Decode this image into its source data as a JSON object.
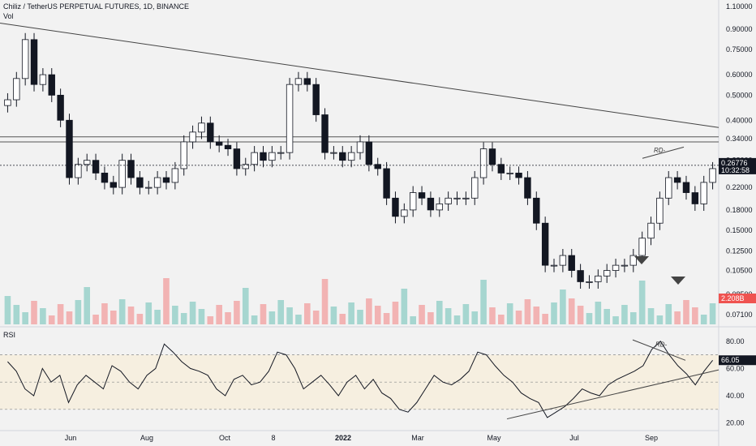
{
  "header": {
    "title": "Chiliz / TetherUS PERPETUAL FUTURES, 1D, BINANCE",
    "volume_label": "Vol",
    "rsi_label": "RSI"
  },
  "colors": {
    "background": "#f2f2f2",
    "up_candle": "#ffffff",
    "down_candle": "#131722",
    "wick": "#131722",
    "volume_up": "#a6d6d0",
    "volume_down": "#f2b3b3",
    "rsi_band": "#f6efe0",
    "rsi_line": "#131722",
    "price_tag": "#131722",
    "volume_tag": "#ef5350"
  },
  "price_axis": {
    "ticks": [
      "1.10000",
      "0.90000",
      "0.75000",
      "0.60000",
      "0.50000",
      "0.40000",
      "0.34000",
      "0.28000",
      "0.22000",
      "0.18000",
      "0.15000",
      "0.12500",
      "0.10500",
      "0.08500",
      "0.07100"
    ],
    "current_price": "0.26776",
    "countdown": "10:32:58",
    "volume_value": "2.208B"
  },
  "rsi_axis": {
    "ticks": [
      "80.00",
      "60.00",
      "40.00",
      "20.00"
    ],
    "current_value": "66.05"
  },
  "time_axis": {
    "ticks": [
      "Jun",
      "Aug",
      "Oct",
      "8",
      "2022",
      "Mar",
      "May",
      "Jul",
      "Sep"
    ]
  },
  "annotations": {
    "price_rd": "RD-",
    "rsi_rd": "RD-"
  },
  "chart_data": [
    {
      "type": "candlestick",
      "title": "Chiliz / TetherUS PERPETUAL FUTURES, 1D, BINANCE",
      "scale": "log",
      "ylim": [
        0.065,
        1.15
      ],
      "x_ticks": [
        "Jun",
        "Aug",
        "Oct",
        "8",
        "2022",
        "Mar",
        "May",
        "Jul",
        "Sep"
      ],
      "y_ticks": [
        1.1,
        0.9,
        0.75,
        0.6,
        0.5,
        0.4,
        0.34,
        0.28,
        0.22,
        0.18,
        0.15,
        0.125,
        0.105,
        0.085,
        0.071
      ],
      "series": [
        {
          "values": [
            0.48,
            0.58,
            0.82,
            0.55,
            0.6,
            0.5,
            0.4,
            0.24,
            0.27,
            0.28,
            0.25,
            0.23,
            0.22,
            0.28,
            0.24,
            0.22,
            0.22,
            0.24,
            0.23,
            0.26,
            0.33,
            0.36,
            0.39,
            0.33,
            0.32,
            0.31,
            0.26,
            0.27,
            0.3,
            0.28,
            0.3,
            0.3,
            0.55,
            0.58,
            0.55,
            0.42,
            0.3,
            0.3,
            0.28,
            0.3,
            0.33,
            0.27,
            0.26,
            0.2,
            0.17,
            0.18,
            0.21,
            0.2,
            0.18,
            0.19,
            0.2,
            0.2,
            0.2,
            0.24,
            0.31,
            0.27,
            0.25,
            0.25,
            0.24,
            0.2,
            0.16,
            0.11,
            0.11,
            0.12,
            0.105,
            0.095,
            0.095,
            0.1,
            0.105,
            0.11,
            0.11,
            0.12,
            0.14,
            0.16,
            0.2,
            0.24,
            0.23,
            0.21,
            0.19,
            0.23,
            0.26
          ]
        }
      ],
      "volume_last": 2.208,
      "current_price": 0.26776
    },
    {
      "type": "line",
      "title": "RSI",
      "ylim": [
        15,
        90
      ],
      "y_ticks": [
        80,
        60,
        40,
        20
      ],
      "bands": [
        30,
        50,
        70
      ],
      "series": [
        {
          "values": [
            65,
            58,
            45,
            40,
            60,
            50,
            55,
            35,
            48,
            55,
            50,
            45,
            62,
            58,
            50,
            45,
            55,
            60,
            78,
            72,
            65,
            60,
            58,
            55,
            45,
            40,
            52,
            55,
            48,
            50,
            58,
            72,
            70,
            60,
            45,
            50,
            55,
            48,
            40,
            50,
            55,
            45,
            52,
            42,
            38,
            30,
            28,
            35,
            45,
            55,
            50,
            48,
            52,
            58,
            72,
            70,
            62,
            55,
            50,
            42,
            38,
            35,
            24,
            28,
            32,
            38,
            45,
            42,
            40,
            48,
            52,
            55,
            58,
            62,
            74,
            80,
            70,
            62,
            56,
            48,
            58,
            66
          ]
        }
      ],
      "current_value": 66.05
    }
  ]
}
